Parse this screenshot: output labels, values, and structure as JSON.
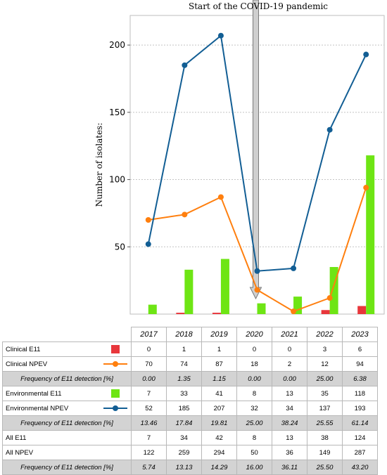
{
  "chart_data": {
    "type": "bar",
    "title": "",
    "annotation": "Start of the COVID-19 pandemic",
    "ylabel": "Number of isolates:",
    "xlabel": "",
    "ylim": [
      0,
      222
    ],
    "yticks": [
      50,
      100,
      150,
      200
    ],
    "grid": "horizontal dotted",
    "categories": [
      "2017",
      "2018",
      "2019",
      "2020",
      "2021",
      "2022",
      "2023"
    ],
    "series": [
      {
        "name": "Clinical E11",
        "kind": "bar",
        "color": "#e8363b",
        "values": [
          0,
          1,
          1,
          0,
          0,
          3,
          6
        ]
      },
      {
        "name": "Clinical NPEV",
        "kind": "line",
        "color": "#ff7f0e",
        "values": [
          70,
          74,
          87,
          18,
          2,
          12,
          94
        ]
      },
      {
        "name": "Environmental E11",
        "kind": "bar",
        "color": "#6ee514",
        "values": [
          7,
          33,
          41,
          8,
          13,
          35,
          118
        ]
      },
      {
        "name": "Environmental NPEV",
        "kind": "line",
        "color": "#125e94",
        "values": [
          52,
          185,
          207,
          32,
          34,
          137,
          193
        ]
      }
    ]
  },
  "table": {
    "years": [
      "2017",
      "2018",
      "2019",
      "2020",
      "2021",
      "2022",
      "2023"
    ],
    "rows": [
      {
        "label": "Clinical E11",
        "marker": "red-square",
        "freq": false,
        "values": [
          "0",
          "1",
          "1",
          "0",
          "0",
          "3",
          "6"
        ]
      },
      {
        "label": "Clinical NPEV",
        "marker": "orange-line",
        "freq": false,
        "values": [
          "70",
          "74",
          "87",
          "18",
          "2",
          "12",
          "94"
        ]
      },
      {
        "label": "Frequency of E11 detection [%]",
        "marker": "",
        "freq": true,
        "values": [
          "0.00",
          "1.35",
          "1.15",
          "0.00",
          "0.00",
          "25.00",
          "6.38"
        ]
      },
      {
        "label": "Environmental E11",
        "marker": "green-square",
        "freq": false,
        "values": [
          "7",
          "33",
          "41",
          "8",
          "13",
          "35",
          "118"
        ]
      },
      {
        "label": "Environmental NPEV",
        "marker": "blue-line",
        "freq": false,
        "values": [
          "52",
          "185",
          "207",
          "32",
          "34",
          "137",
          "193"
        ]
      },
      {
        "label": "Frequency of E11 detection [%]",
        "marker": "",
        "freq": true,
        "values": [
          "13.46",
          "17.84",
          "19.81",
          "25.00",
          "38.24",
          "25.55",
          "61.14"
        ]
      },
      {
        "label": "All E11",
        "marker": "",
        "freq": false,
        "values": [
          "7",
          "34",
          "42",
          "8",
          "13",
          "38",
          "124"
        ]
      },
      {
        "label": "All NPEV",
        "marker": "",
        "freq": false,
        "values": [
          "122",
          "259",
          "294",
          "50",
          "36",
          "149",
          "287"
        ]
      },
      {
        "label": "Frequency of E11 detection [%]",
        "marker": "",
        "freq": true,
        "values": [
          "5.74",
          "13.13",
          "14.29",
          "16.00",
          "36.11",
          "25.50",
          "43.20"
        ]
      }
    ]
  }
}
